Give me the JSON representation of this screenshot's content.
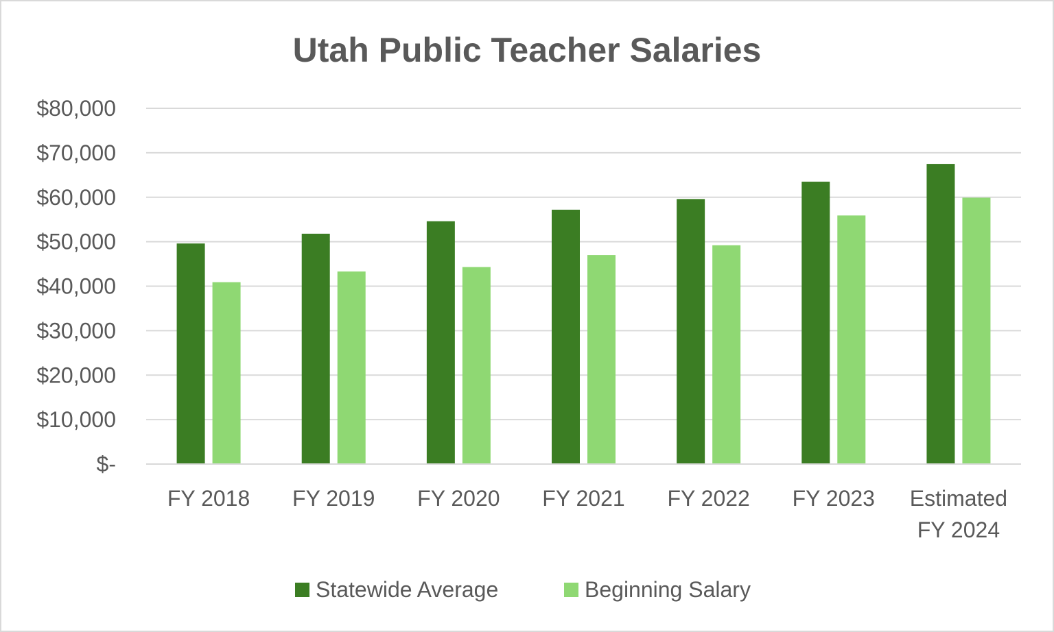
{
  "chart_data": {
    "type": "bar",
    "title": "Utah Public Teacher Salaries",
    "xlabel": "",
    "ylabel": "",
    "categories": [
      "FY 2018",
      "FY 2019",
      "FY 2020",
      "FY 2021",
      "FY 2022",
      "FY 2023",
      "Estimated FY 2024"
    ],
    "category_lines": [
      [
        "FY 2018"
      ],
      [
        "FY 2019"
      ],
      [
        "FY 2020"
      ],
      [
        "FY 2021"
      ],
      [
        "FY 2022"
      ],
      [
        "FY 2023"
      ],
      [
        "Estimated",
        "FY 2024"
      ]
    ],
    "series": [
      {
        "name": "Statewide Average",
        "color": "#3b7d23",
        "values": [
          49600,
          51800,
          54600,
          57200,
          59600,
          63500,
          67500
        ]
      },
      {
        "name": "Beginning Salary",
        "color": "#8fd873",
        "values": [
          40900,
          43300,
          44300,
          47000,
          49200,
          55900,
          59900
        ]
      }
    ],
    "ylim": [
      0,
      80000
    ],
    "yticks": [
      0,
      10000,
      20000,
      30000,
      40000,
      50000,
      60000,
      70000,
      80000
    ],
    "ytick_labels": [
      "$-",
      "$10,000",
      "$20,000",
      "$30,000",
      "$40,000",
      "$50,000",
      "$60,000",
      "$70,000",
      "$80,000"
    ],
    "grid": true,
    "legend_position": "bottom",
    "colors": {
      "gridline": "#d9d9d9",
      "text": "#595959",
      "border": "#d9d9d9"
    }
  }
}
